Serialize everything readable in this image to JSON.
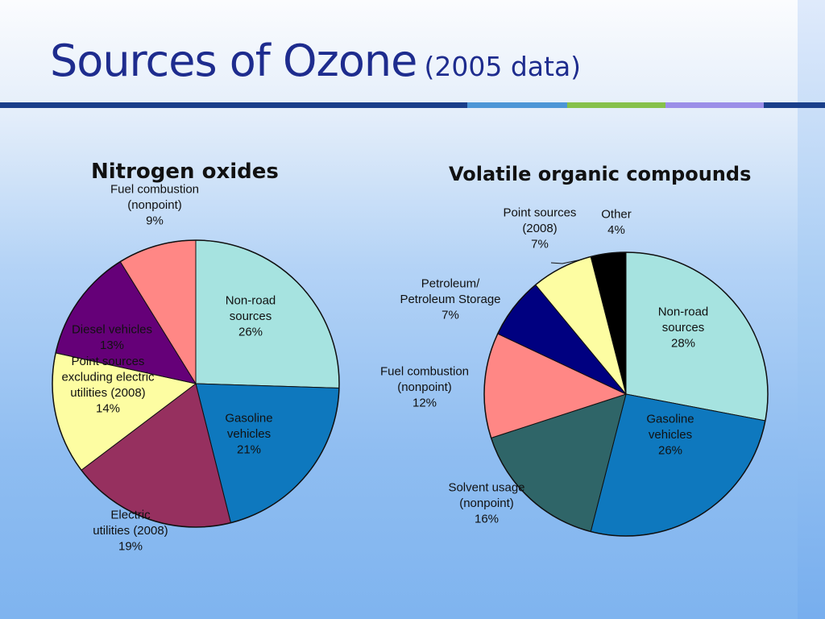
{
  "slide": {
    "title": "Sources of Ozone",
    "subtitle": "(2005 data)",
    "colors": {
      "title": "#1e2c8e",
      "rule_dark": "#1a3f8a",
      "rule_blue": "#4d96d6",
      "rule_green": "#86c14a",
      "rule_purple": "#9b8ee8"
    }
  },
  "chart_data": [
    {
      "type": "pie",
      "title": "Nitrogen oxides",
      "start": "12 o'clock",
      "direction": "clockwise",
      "slices": [
        {
          "label": "Non-road sources",
          "lines": [
            "Non-road",
            "sources",
            "26%"
          ],
          "value": 26,
          "color": "#a6e3e0"
        },
        {
          "label": "Gasoline vehicles",
          "lines": [
            "Gasoline",
            "vehicles",
            "21%"
          ],
          "value": 21,
          "color": "#0e78be",
          "label_color": "#ffffff"
        },
        {
          "label": "Electric utilities (2008)",
          "lines": [
            "Electric",
            "utilities (2008)",
            "19%"
          ],
          "value": 19,
          "color": "#96305f"
        },
        {
          "label": "Point sources excluding electric utilities (2008)",
          "lines": [
            "Point sources",
            "excluding electric",
            "utilities (2008)",
            "14%"
          ],
          "value": 14,
          "color": "#fdfda2"
        },
        {
          "label": "Diesel vehicles",
          "lines": [
            "Diesel vehicles",
            "13%"
          ],
          "value": 13,
          "color": "#650078",
          "label_color": "#ffffff"
        },
        {
          "label": "Fuel combustion (nonpoint)",
          "lines": [
            "Fuel combustion",
            "(nonpoint)",
            "9%"
          ],
          "value": 9,
          "color": "#ff8785"
        }
      ]
    },
    {
      "type": "pie",
      "title": "Volatile organic compounds",
      "start": "12 o'clock",
      "direction": "clockwise",
      "slices": [
        {
          "label": "Non-road sources",
          "lines": [
            "Non-road",
            "sources",
            "28%"
          ],
          "value": 28,
          "color": "#a6e3e0"
        },
        {
          "label": "Gasoline vehicles",
          "lines": [
            "Gasoline",
            "vehicles",
            "26%"
          ],
          "value": 26,
          "color": "#0e78be",
          "label_color": "#ffffff"
        },
        {
          "label": "Solvent usage (nonpoint)",
          "lines": [
            "Solvent usage",
            "(nonpoint)",
            "16%"
          ],
          "value": 16,
          "color": "#2f6568"
        },
        {
          "label": "Fuel combustion (nonpoint)",
          "lines": [
            "Fuel combustion",
            "(nonpoint)",
            "12%"
          ],
          "value": 12,
          "color": "#ff8785"
        },
        {
          "label": "Petroleum/ Petroleum Storage",
          "lines": [
            "Petroleum/",
            "Petroleum Storage",
            "7%"
          ],
          "value": 7,
          "color": "#000080"
        },
        {
          "label": "Point sources (2008)",
          "lines": [
            "Point sources",
            "(2008)",
            "7%"
          ],
          "value": 7,
          "color": "#fdfda2"
        },
        {
          "label": "Other",
          "lines": [
            "Other",
            "4%"
          ],
          "value": 4,
          "color": "#000000"
        }
      ]
    }
  ]
}
